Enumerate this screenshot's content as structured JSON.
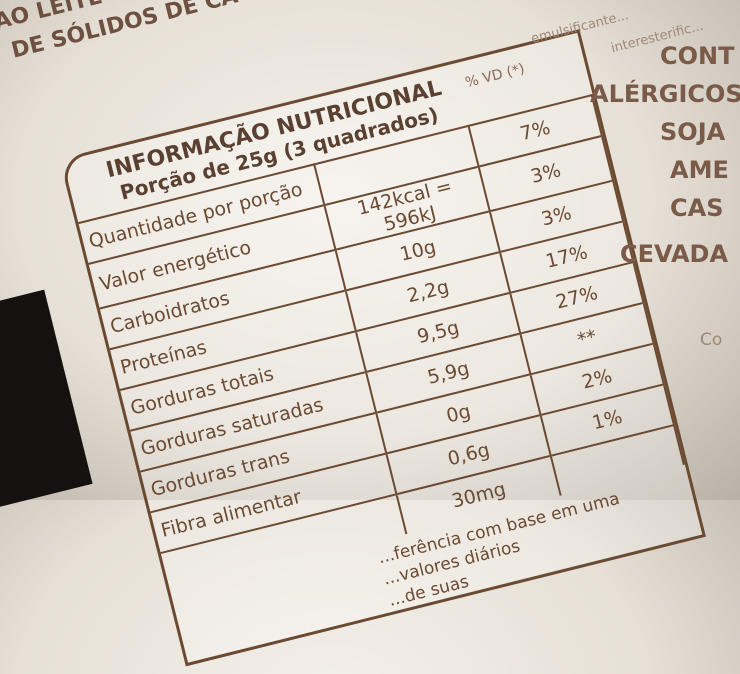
{
  "header_fragments": [
    "AO LEITE E...",
    "DE SÓLIDOS DE CAC..."
  ],
  "label": {
    "title": "INFORMAÇÃO NUTRICIONAL",
    "portion": "Porção de 25g (3 quadrados)",
    "vd_header": "% VD (*)",
    "rows": [
      {
        "name": "Quantidade por porção",
        "value": "",
        "vd": "7%"
      },
      {
        "name": "Valor energético",
        "value": "142kcal = 596kJ",
        "vd": "3%"
      },
      {
        "name": "Carboidratos",
        "value": "10g",
        "vd": "3%"
      },
      {
        "name": "Proteínas",
        "value": "2,2g",
        "vd": "17%"
      },
      {
        "name": "Gorduras totais",
        "value": "9,5g",
        "vd": "27%"
      },
      {
        "name": "Gorduras saturadas",
        "value": "5,9g",
        "vd": "**"
      },
      {
        "name": "Gorduras trans",
        "value": "0g",
        "vd": "2%"
      },
      {
        "name": "Fibra alimentar",
        "value": "0,6g",
        "vd": "1%"
      },
      {
        "name": "",
        "value": "30mg",
        "vd": ""
      }
    ],
    "footnote": [
      "...ferência com base em uma",
      "...valores diários",
      "...de suas"
    ]
  },
  "right_text": [
    "emulsificante...",
    "interesterific...",
    "CONT",
    "ALÉRGICOS",
    "SOJA",
    "AME",
    "CAS",
    "CEVADA",
    "Co"
  ]
}
